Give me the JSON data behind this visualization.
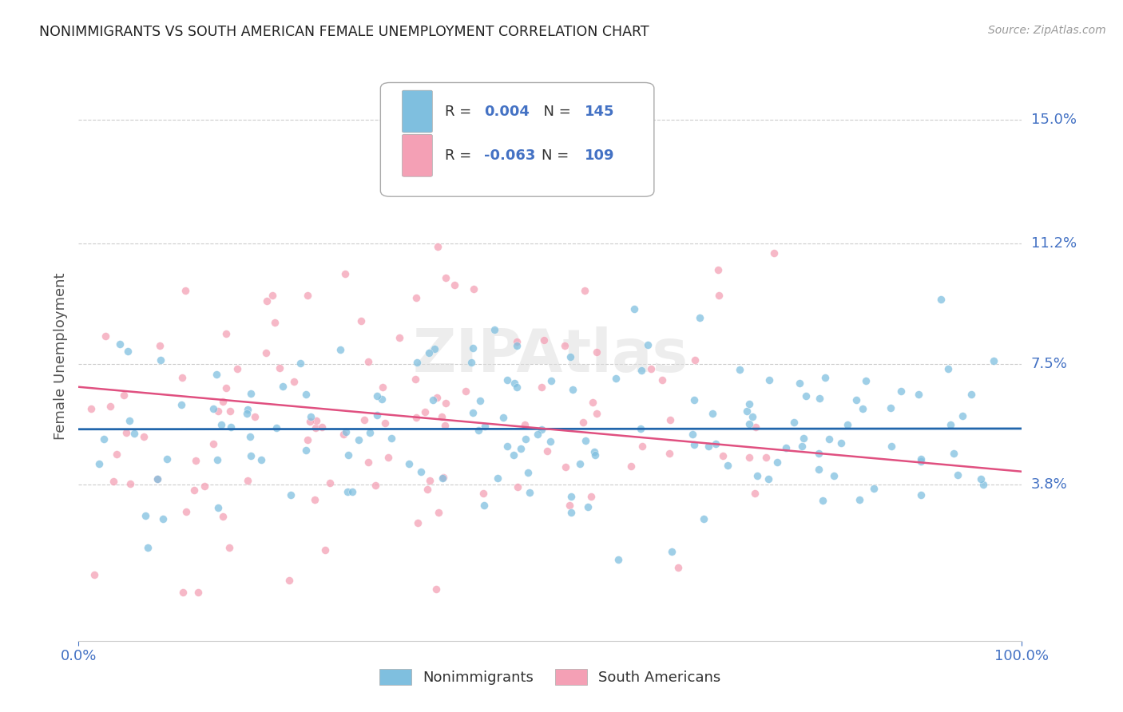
{
  "title": "NONIMMIGRANTS VS SOUTH AMERICAN FEMALE UNEMPLOYMENT CORRELATION CHART",
  "source": "Source: ZipAtlas.com",
  "ylabel": "Female Unemployment",
  "watermark": "ZIPAtlas",
  "series": [
    {
      "name": "Nonimmigrants",
      "color": "#7fbfdf",
      "R": 0.004,
      "N": 145,
      "trend_color": "#2166ac"
    },
    {
      "name": "South Americans",
      "color": "#f4a0b5",
      "R": -0.063,
      "N": 109,
      "trend_color": "#e05080"
    }
  ],
  "xlim": [
    0.0,
    100.0
  ],
  "ylim": [
    -1.0,
    16.5
  ],
  "ytick_values": [
    3.8,
    7.5,
    11.2,
    15.0
  ],
  "background_color": "#ffffff",
  "grid_color": "#cccccc",
  "title_color": "#222222",
  "axis_label_color": "#555555",
  "tick_label_color": "#4472c4",
  "value_color": "#4472c4",
  "blue_trend_y": [
    5.5,
    5.52
  ],
  "pink_trend_y": [
    6.8,
    4.2
  ]
}
